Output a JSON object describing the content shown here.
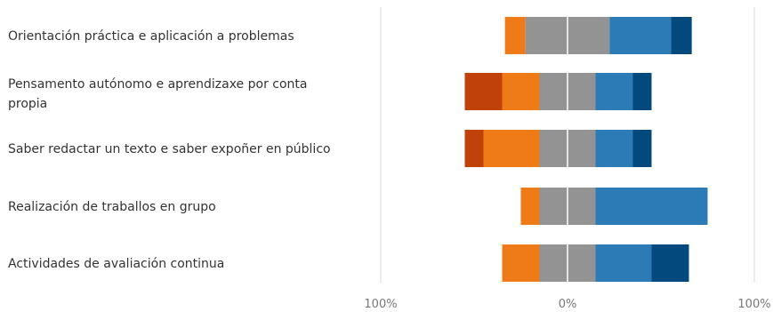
{
  "chart_data": {
    "type": "bar",
    "orientation": "horizontal",
    "stacked": "diverging",
    "xlim": [
      -100,
      100
    ],
    "x_ticks": [
      "100%",
      "0%",
      "100%"
    ],
    "grid": true,
    "legend": "none",
    "segment_colors": [
      "#c0410a",
      "#ef7a18",
      "#939393",
      "#2c7bb6",
      "#03497e"
    ],
    "categories": [
      "Orientación práctica e aplicación a problemas",
      "Pensamento autónomo e aprendizaxe por conta propia",
      "Saber redactar un texto e saber expoñer en público",
      "Realización de traballos en grupo",
      "Actividades de avaliación continua"
    ],
    "values": [
      [
        0,
        11,
        45,
        33,
        11
      ],
      [
        20,
        20,
        30,
        20,
        10
      ],
      [
        10,
        30,
        30,
        20,
        10
      ],
      [
        0,
        10,
        30,
        60,
        0
      ],
      [
        0,
        20,
        30,
        30,
        20
      ]
    ]
  }
}
